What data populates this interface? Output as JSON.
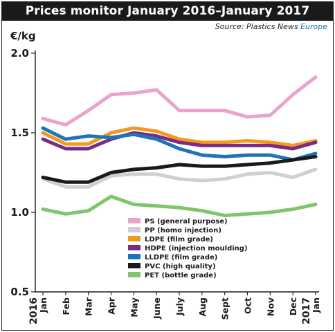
{
  "title": "Prices monitor January 2016–January 2017",
  "source": {
    "prefix": "Source: Plastics News ",
    "brand": "Europe"
  },
  "chart_data": {
    "type": "line",
    "ylabel": "€/kg",
    "ylim": [
      0.5,
      2.0
    ],
    "yticks": [
      "0.5",
      "1.0",
      "1.5",
      "2.0"
    ],
    "grid": false,
    "legend_position": "bottom-center",
    "x": [
      "Jan",
      "Feb",
      "Mar",
      "Apr",
      "May",
      "June",
      "July",
      "Aug",
      "Sept",
      "Oct",
      "Nov",
      "Dec",
      "Jan"
    ],
    "year_labels": [
      {
        "label": "2016",
        "index": 0
      },
      {
        "label": "2017",
        "index": 12
      }
    ],
    "series": [
      {
        "name": "PS (general purpose)",
        "color": "#e9a3cc",
        "values": [
          1.59,
          1.55,
          1.64,
          1.74,
          1.75,
          1.77,
          1.64,
          1.64,
          1.64,
          1.6,
          1.61,
          1.74,
          1.85
        ]
      },
      {
        "name": "PP (homo injection)",
        "color": "#cfcfcf",
        "values": [
          1.21,
          1.16,
          1.16,
          1.23,
          1.24,
          1.24,
          1.21,
          1.2,
          1.21,
          1.24,
          1.25,
          1.22,
          1.27
        ]
      },
      {
        "name": "LDPE (film grade)",
        "color": "#f39a1e",
        "values": [
          1.5,
          1.43,
          1.43,
          1.5,
          1.53,
          1.51,
          1.46,
          1.44,
          1.44,
          1.45,
          1.44,
          1.42,
          1.45
        ]
      },
      {
        "name": "HDPE (injection moulding)",
        "color": "#7a2a88",
        "values": [
          1.46,
          1.4,
          1.4,
          1.46,
          1.5,
          1.48,
          1.44,
          1.42,
          1.42,
          1.42,
          1.42,
          1.4,
          1.44
        ]
      },
      {
        "name": "LLDPE (film grade)",
        "color": "#1f74b8",
        "values": [
          1.53,
          1.46,
          1.48,
          1.47,
          1.49,
          1.46,
          1.4,
          1.36,
          1.35,
          1.36,
          1.36,
          1.33,
          1.37
        ]
      },
      {
        "name": "PVC (high quality)",
        "color": "#1a1a1a",
        "values": [
          1.22,
          1.19,
          1.19,
          1.25,
          1.27,
          1.28,
          1.3,
          1.29,
          1.29,
          1.3,
          1.31,
          1.33,
          1.35
        ]
      },
      {
        "name": "PET (bottle grade)",
        "color": "#7fc56b",
        "values": [
          1.02,
          0.99,
          1.01,
          1.1,
          1.05,
          1.04,
          1.03,
          1.01,
          0.98,
          0.99,
          1.0,
          1.02,
          1.05
        ]
      }
    ]
  }
}
